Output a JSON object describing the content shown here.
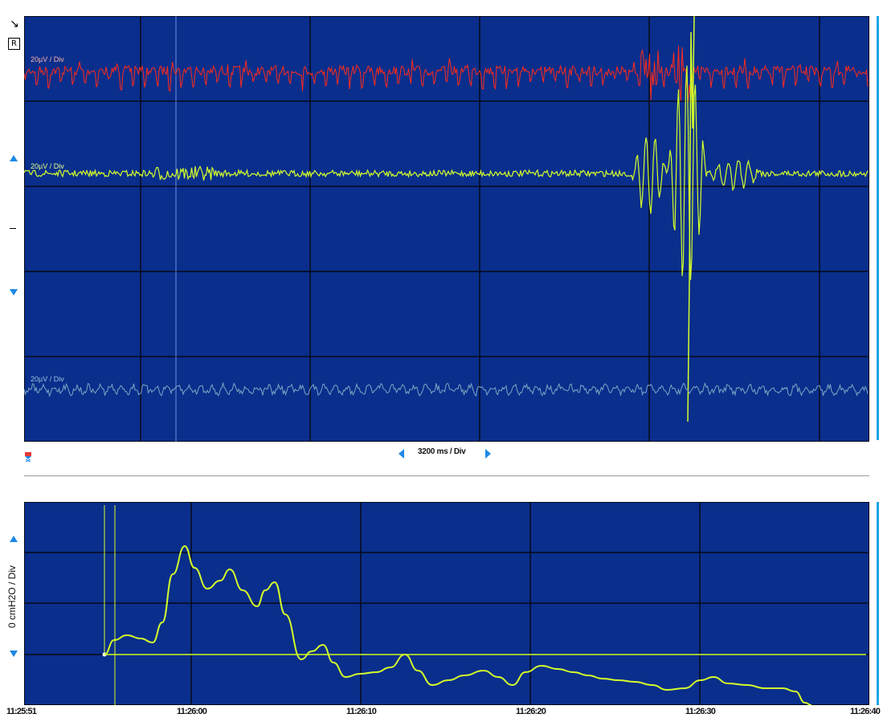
{
  "top_panel": {
    "channels": [
      {
        "label": "20µV / Div",
        "color": "#ff2a1a"
      },
      {
        "label": "20µV / Div",
        "color": "#d4ff2a"
      },
      {
        "label": "20µV / Div",
        "color": "#7aa6c4"
      }
    ],
    "timebase_label": "3200 ms / Div",
    "background": "#0a2e8c",
    "gridline_color": "#050a18"
  },
  "bottom_panel": {
    "ylabel": "0 cmH2O / Div",
    "line_color": "#d4ff2a",
    "time_labels": [
      "11:25:51",
      "11:26:00",
      "11:26:10",
      "11:26:20",
      "11:26:30",
      "11:26:40"
    ]
  },
  "icons": {
    "top_left": "cursor-arrow-icon",
    "reset": "R",
    "scroll_up": "up-triangle-icon",
    "scroll_down": "down-triangle-icon",
    "marker": "marker-icon"
  }
}
